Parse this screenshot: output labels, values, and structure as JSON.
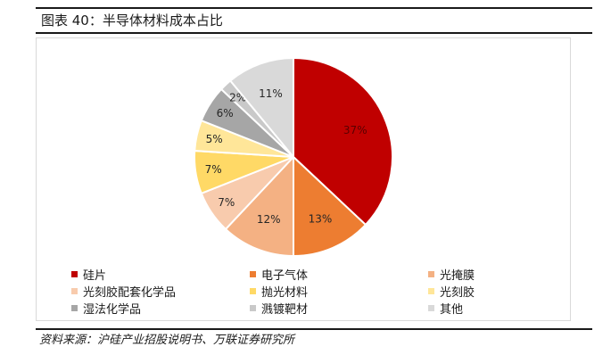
{
  "header": {
    "title": "图表 40：半导体材料成本占比"
  },
  "source": {
    "text": "资料来源：沪硅产业招股说明书、万联证券研究所"
  },
  "chart_data": {
    "type": "pie",
    "title": "",
    "start_angle_deg": 0,
    "direction": "clockwise",
    "series": [
      {
        "name": "硅片",
        "value": 37,
        "label": "37%",
        "color": "#c00000"
      },
      {
        "name": "电子气体",
        "value": 13,
        "label": "13%",
        "color": "#ed7d31"
      },
      {
        "name": "光掩膜",
        "value": 12,
        "label": "12%",
        "color": "#f4b183"
      },
      {
        "name": "光刻胶配套化学品",
        "value": 7,
        "label": "7%",
        "color": "#f8cbad"
      },
      {
        "name": "抛光材料",
        "value": 7,
        "label": "7%",
        "color": "#ffd966"
      },
      {
        "name": "光刻胶",
        "value": 5,
        "label": "5%",
        "color": "#ffe699"
      },
      {
        "name": "湿法化学品",
        "value": 6,
        "label": "6%",
        "color": "#a6a6a6"
      },
      {
        "name": "溅镀靶材",
        "value": 2,
        "label": "2%",
        "color": "#c9c9c9"
      },
      {
        "name": "其他",
        "value": 11,
        "label": "11%",
        "color": "#d9d9d9"
      }
    ],
    "legend": {
      "position": "bottom",
      "columns": 3
    }
  }
}
